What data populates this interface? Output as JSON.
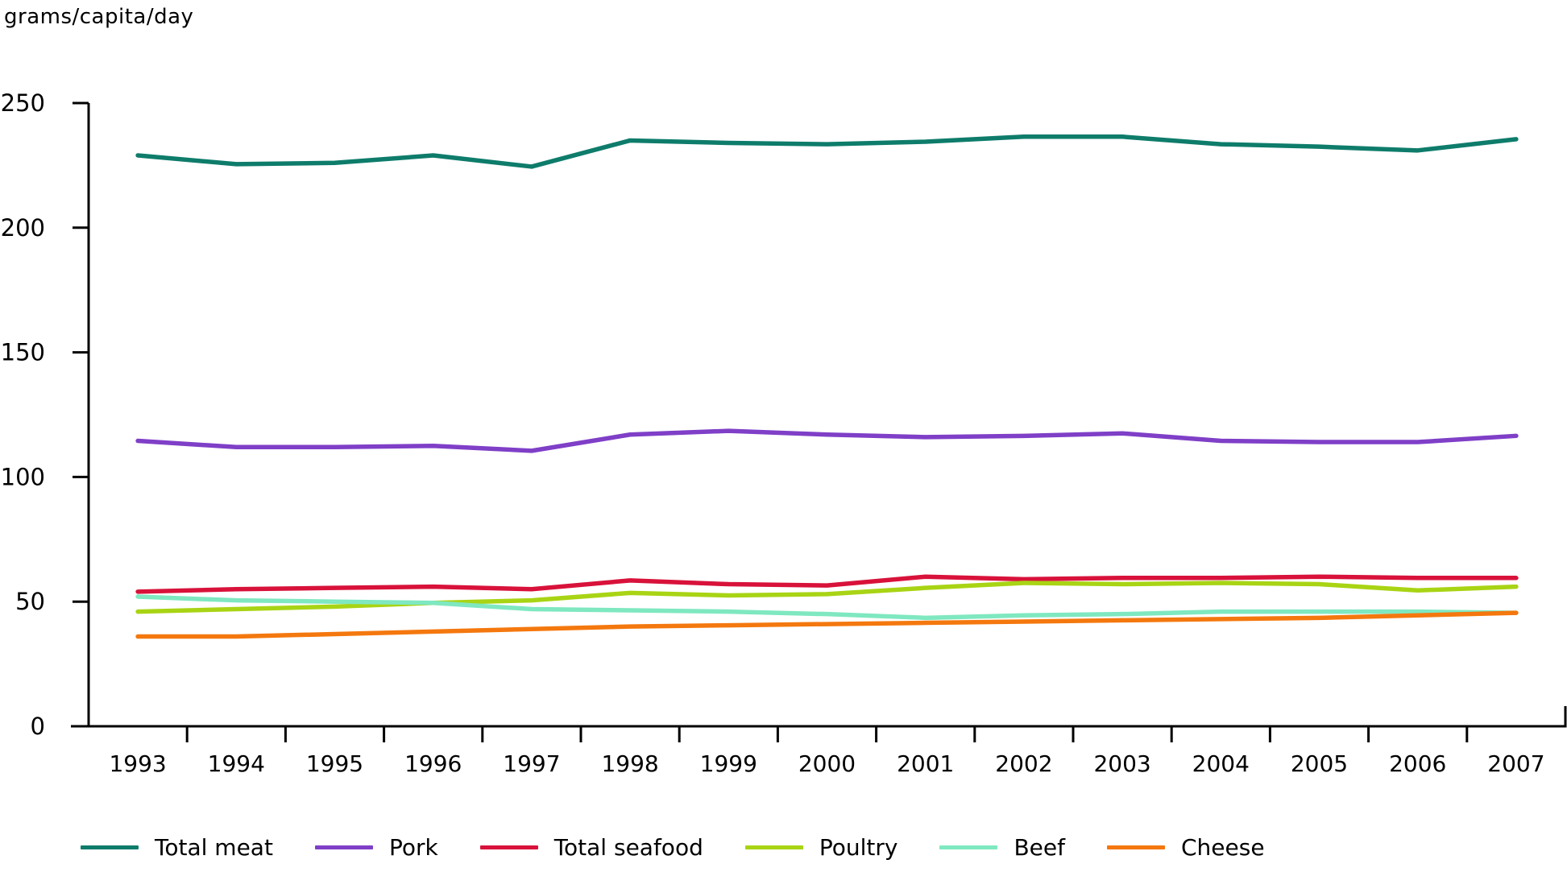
{
  "chart_data": {
    "type": "line",
    "title": "",
    "ylabel": "grams/capita/day",
    "xlabel": "",
    "ylim": [
      0,
      250
    ],
    "yticks": [
      0,
      50,
      100,
      150,
      200,
      250
    ],
    "grid": false,
    "legend_position": "bottom",
    "x": [
      1993,
      1994,
      1995,
      1996,
      1997,
      1998,
      1999,
      2000,
      2001,
      2002,
      2003,
      2004,
      2005,
      2006,
      2007
    ],
    "series": [
      {
        "name": "Total meat",
        "color": "#0e7c6b",
        "values": [
          229,
          225.5,
          226,
          229,
          224.5,
          235,
          234,
          233.5,
          234.5,
          236.5,
          236.5,
          233.5,
          232.5,
          231,
          235.5
        ]
      },
      {
        "name": "Pork",
        "color": "#7f3fc7",
        "values": [
          114.5,
          112,
          112,
          112.5,
          110.5,
          117,
          118.5,
          117,
          116,
          116.5,
          117.5,
          114.5,
          114,
          114,
          116.5
        ]
      },
      {
        "name": "Total seafood",
        "color": "#d8123a",
        "values": [
          54,
          55,
          55.5,
          56,
          55,
          58.5,
          57,
          56.5,
          60,
          59,
          59.5,
          59.5,
          60,
          59.5,
          59.5
        ]
      },
      {
        "name": "Poultry",
        "color": "#a8d414",
        "values": [
          46,
          47,
          48,
          49.5,
          50.5,
          53.5,
          52.5,
          53,
          55.5,
          57.5,
          57,
          57.5,
          57,
          54.5,
          56
        ]
      },
      {
        "name": "Beef",
        "color": "#7fe8c0",
        "values": [
          52,
          50.5,
          50,
          49.5,
          47,
          46.5,
          46,
          45,
          43.5,
          44.5,
          45,
          46,
          46,
          46,
          45.5
        ]
      },
      {
        "name": "Cheese",
        "color": "#f4780e",
        "values": [
          36,
          36,
          37,
          38,
          39,
          40,
          40.5,
          41,
          41.5,
          42,
          42.5,
          43,
          43.5,
          44.5,
          45.5
        ]
      }
    ]
  }
}
